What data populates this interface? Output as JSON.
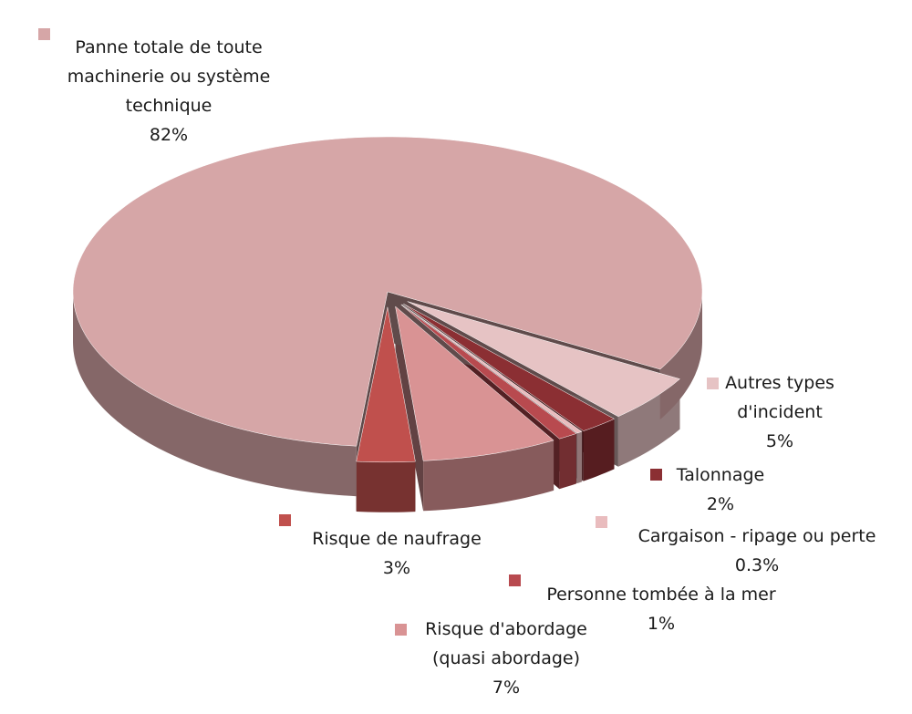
{
  "chart_data": {
    "type": "pie3d",
    "categories": [
      "Autres types d'incident",
      "Talonnage",
      "Cargaison - ripage ou perte",
      "Personne tombée à la mer",
      "Risque d'abordage (quasi abordage)",
      "Risque de naufrage",
      "Panne totale de toute machinerie ou système technique"
    ],
    "values": [
      5,
      2,
      0.3,
      1,
      7,
      3,
      82
    ],
    "value_labels": [
      "5%",
      "2%",
      "0.3%",
      "1%",
      "7%",
      "3%",
      "82%"
    ],
    "colors": [
      "#e6c3c4",
      "#8b2f33",
      "#e9bcbe",
      "#b84a4f",
      "#d99394",
      "#c0504d",
      "#d6a6a7"
    ]
  }
}
